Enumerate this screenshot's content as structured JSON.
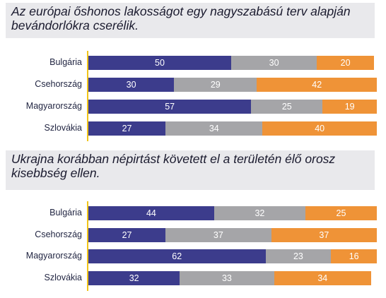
{
  "colors": {
    "series_0": "#3c3c8c",
    "series_1": "#a5a5a8",
    "series_2": "#ef9337",
    "axis": "#f0c419"
  },
  "chart_data": [
    {
      "type": "bar",
      "orientation": "horizontal",
      "stacked": true,
      "title": "Az európai őshonos lakosságot egy nagyszabású terv alapján bevándorlókra cserélik.",
      "categories": [
        "Bulgária",
        "Csehország",
        "Magyarország",
        "Szlovákia"
      ],
      "series": [
        {
          "values": [
            50,
            30,
            57,
            27
          ]
        },
        {
          "values": [
            30,
            29,
            25,
            34
          ]
        },
        {
          "values": [
            20,
            42,
            19,
            40
          ]
        }
      ],
      "xlim": [
        0,
        100
      ]
    },
    {
      "type": "bar",
      "orientation": "horizontal",
      "stacked": true,
      "title": "Ukrajna korábban népirtást követett el a területén élő orosz kisebbség ellen.",
      "categories": [
        "Bulgária",
        "Csehország",
        "Magyarország",
        "Szlovákia"
      ],
      "series": [
        {
          "values": [
            44,
            27,
            62,
            32
          ]
        },
        {
          "values": [
            32,
            37,
            23,
            33
          ]
        },
        {
          "values": [
            25,
            37,
            16,
            34
          ]
        }
      ],
      "xlim": [
        0,
        100
      ]
    }
  ]
}
